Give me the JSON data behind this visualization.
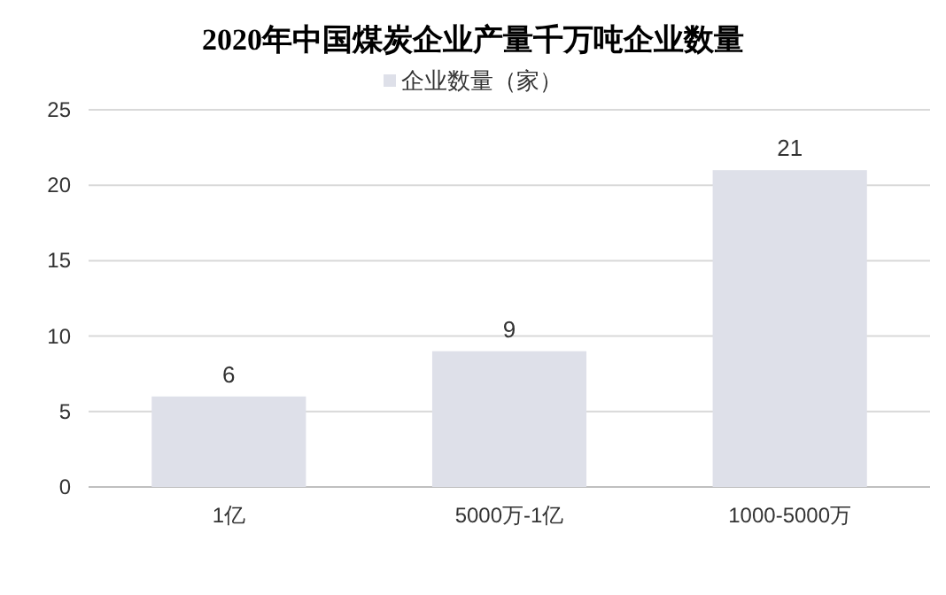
{
  "chart_data": {
    "type": "bar",
    "title": "2020年中国煤炭企业产量千万吨企业数量",
    "categories": [
      "1亿",
      "5000万-1亿",
      "1000-5000万"
    ],
    "series": [
      {
        "name": "企业数量（家）",
        "color": "#dee0e9",
        "values": [
          6,
          9,
          21
        ]
      }
    ],
    "ylim": [
      0,
      25
    ],
    "yticks": [
      0,
      5,
      10,
      15,
      20,
      25
    ],
    "grid": "y",
    "legend": "top",
    "data_labels": true
  }
}
